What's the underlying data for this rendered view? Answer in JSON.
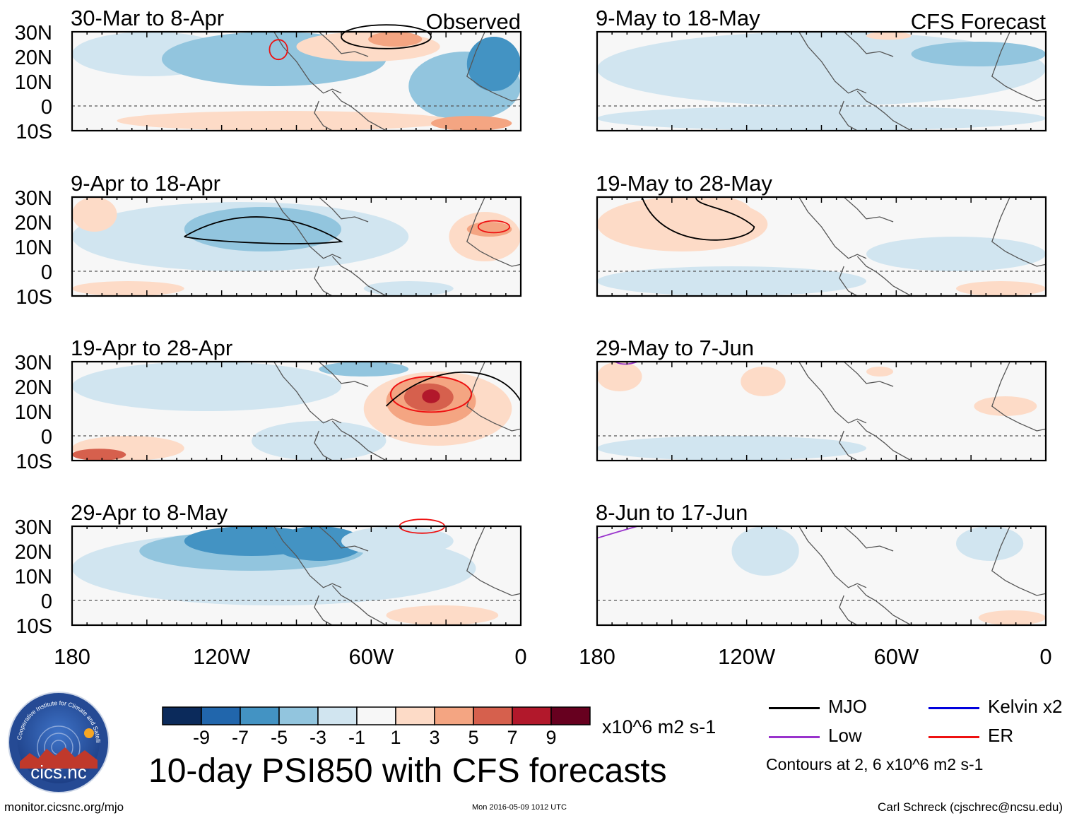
{
  "figure": {
    "title": "10-day PSI850 with CFS forecasts",
    "website": "monitor.cicsnc.org/mjo",
    "timestamp": "Mon 2016-05-09 1012 UTC",
    "author": "Carl Schreck (cjschrec@ncsu.edu)",
    "logo_text": "cics.nc",
    "logo_ring_text": "Cooperative Institute for Climate and Satellites"
  },
  "columns": {
    "left_label": "Observed",
    "right_label": "CFS Forecast"
  },
  "axes": {
    "lat_ticks": [
      "30N",
      "20N",
      "10N",
      "0",
      "10S"
    ],
    "lon_ticks": [
      "180",
      "120W",
      "60W",
      "0"
    ]
  },
  "panels": [
    {
      "period": "30-Mar to 8-Apr"
    },
    {
      "period": "9-Apr to 18-Apr"
    },
    {
      "period": "19-Apr to 28-Apr"
    },
    {
      "period": "29-Apr to 8-May"
    },
    {
      "period": "9-May to 18-May"
    },
    {
      "period": "19-May to 28-May"
    },
    {
      "period": "29-May to 7-Jun"
    },
    {
      "period": "8-Jun to 17-Jun"
    }
  ],
  "colorbar": {
    "units": "x10^6 m2 s-1",
    "labels": [
      "-9",
      "-7",
      "-5",
      "-3",
      "-1",
      "1",
      "3",
      "5",
      "7",
      "9"
    ],
    "colors": [
      "#0b2a5b",
      "#2166ac",
      "#4393c3",
      "#92c5de",
      "#d1e5f0",
      "#f7f7f7",
      "#fddbc7",
      "#f4a582",
      "#d6604d",
      "#b2182b",
      "#67001f"
    ]
  },
  "legend": {
    "items": [
      {
        "label": "MJO",
        "color": "#000000"
      },
      {
        "label": "Kelvin x2",
        "color": "#0000dd"
      },
      {
        "label": "Low",
        "color": "#9933cc"
      },
      {
        "label": "ER",
        "color": "#ee1111"
      }
    ],
    "contour_note": "Contours at 2, 6 x10^6 m2 s-1"
  }
}
